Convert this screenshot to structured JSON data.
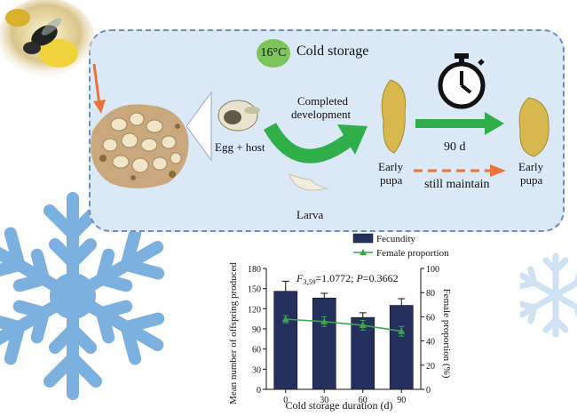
{
  "diagram": {
    "temperature_badge": "16°C",
    "storage_title": "Cold storage",
    "egg_host_label": "Egg + host",
    "completed_label_line1": "Completed",
    "completed_label_line2": "development",
    "larva_label": "Larva",
    "duration_label": "90 d",
    "early_pupa_left_line1": "Early",
    "early_pupa_left_line2": "pupa",
    "early_pupa_right_line1": "Early",
    "early_pupa_right_line2": "pupa",
    "still_maintain_label": "still maintain",
    "colors": {
      "panel": "#dbe9f7",
      "panel_border": "#6d8fb8",
      "badge": "#7cc45b",
      "green_arrow": "#2fae4a",
      "orange_arrow": "#e8743b",
      "snowflake": "#7bb0df"
    }
  },
  "chart_data": {
    "type": "bar",
    "categories": [
      "0",
      "30",
      "60",
      "90"
    ],
    "series": [
      {
        "name": "Fecundity",
        "type": "bar",
        "values": [
          146,
          136,
          107,
          125
        ],
        "errors": [
          15,
          7,
          7,
          10
        ],
        "axis": "left",
        "color": "#26305e"
      },
      {
        "name": "Female proportion",
        "type": "line",
        "values": [
          58,
          56,
          53,
          48
        ],
        "errors": [
          3,
          4,
          4,
          4
        ],
        "axis": "right",
        "color": "#3aa84a"
      }
    ],
    "annotation": {
      "F": "F",
      "F_sub": "3,59",
      "F_value": "=1.0772; ",
      "P": "P",
      "P_value": "=0.3662"
    },
    "xlabel": "Cold storage duration (d)",
    "ylabel_left": "Mean number of offspring produced",
    "ylabel_right": "Female proportion (%)",
    "ylim_left": [
      0,
      180
    ],
    "ylim_right": [
      0,
      100
    ],
    "yticks_left": [
      "0",
      "30",
      "60",
      "90",
      "120",
      "150",
      "180"
    ],
    "yticks_right": [
      "0",
      "20",
      "40",
      "60",
      "80",
      "100"
    ],
    "legend_position": "top"
  }
}
